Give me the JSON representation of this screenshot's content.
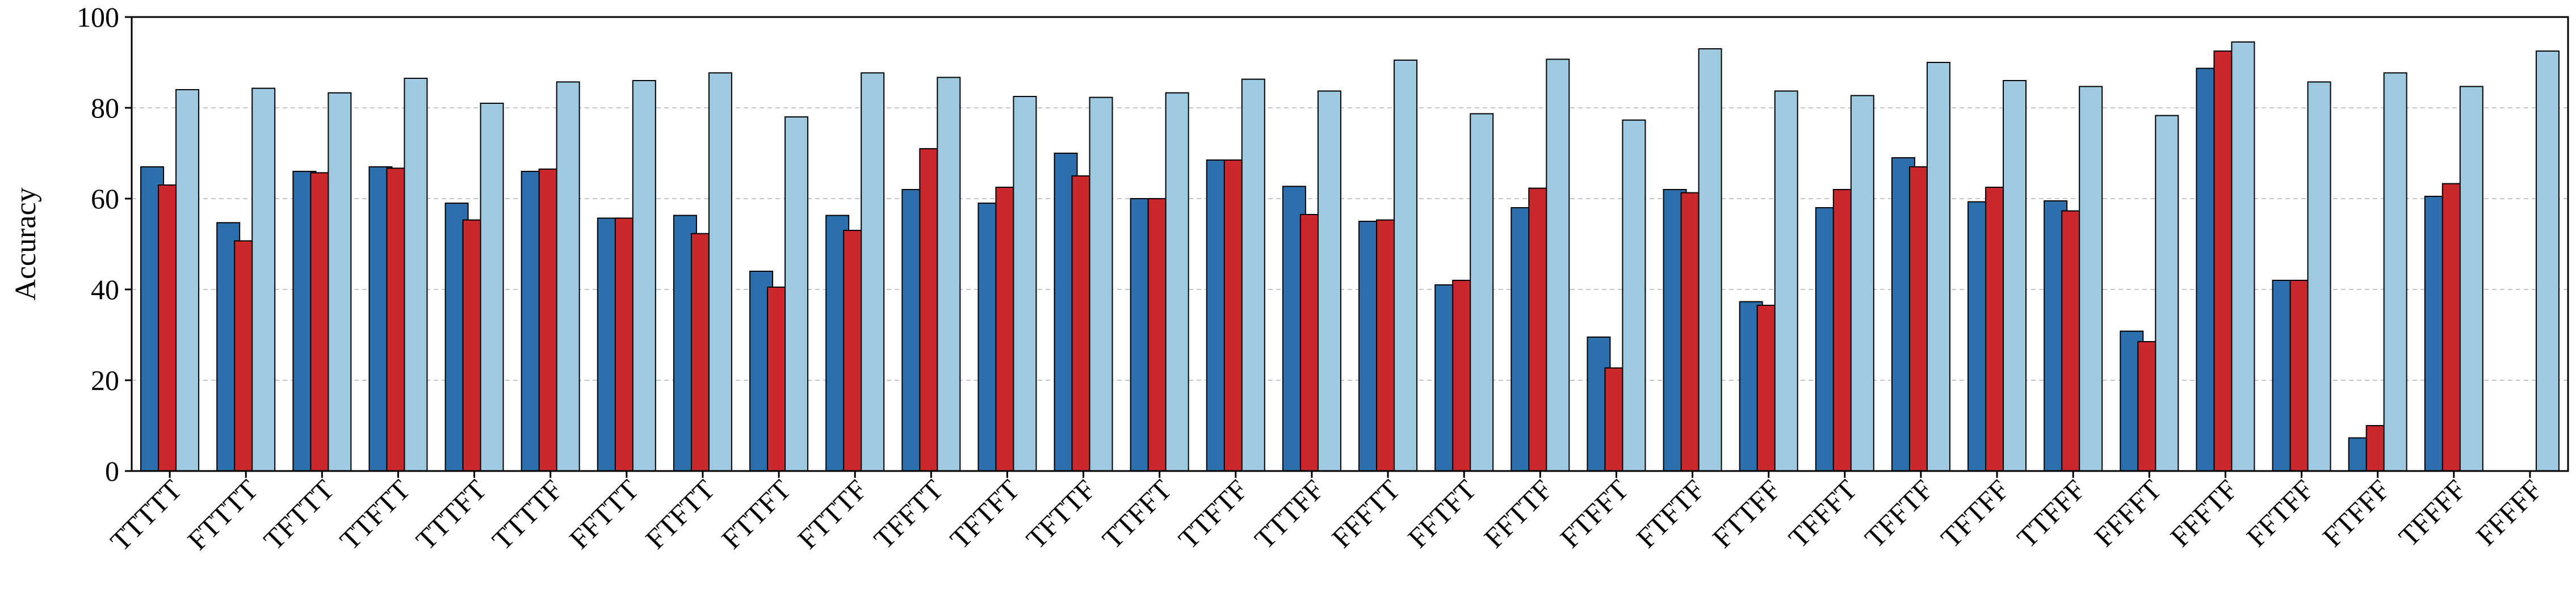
{
  "chart_data": {
    "type": "bar",
    "title": "",
    "xlabel": "",
    "ylabel": "Accuracy",
    "ylim": [
      0,
      100
    ],
    "yticks": [
      0,
      20,
      40,
      60,
      80,
      100
    ],
    "grid": "horizontal dashed",
    "legend": "none",
    "categories": [
      "TTTTT",
      "FTTTT",
      "TFTTT",
      "TTFTT",
      "TTTFT",
      "TTTTF",
      "FFTTT",
      "FTFTT",
      "FTTFT",
      "FTTTF",
      "TFFTT",
      "TFTFT",
      "TFTTF",
      "TTFFT",
      "TTFTF",
      "TTTFF",
      "FFFTT",
      "FFTFT",
      "FFTTF",
      "FTFFT",
      "FTFTF",
      "FTTFF",
      "TFFFT",
      "TFFTF",
      "TFTFF",
      "TTFFF",
      "FFFFT",
      "FFFTF",
      "FFTFF",
      "FTFFF",
      "TFFFF",
      "FFFFF"
    ],
    "series": [
      {
        "color": "#2c6fad",
        "values": [
          67,
          54.7,
          66,
          67,
          59,
          66,
          55.7,
          56.3,
          44,
          56.3,
          62,
          59,
          70,
          60,
          68.5,
          62.7,
          55,
          41,
          58,
          29.5,
          62,
          37.3,
          58,
          69,
          59.3,
          59.5,
          30.8,
          88.7,
          42,
          7.3,
          60.5,
          null
        ]
      },
      {
        "color": "#c9282d",
        "values": [
          63,
          50.7,
          65.7,
          66.7,
          55.3,
          66.5,
          55.7,
          52.3,
          40.5,
          53,
          71,
          62.5,
          65,
          60,
          68.5,
          56.5,
          55.3,
          42,
          62.3,
          22.7,
          61.3,
          36.5,
          62,
          67,
          62.5,
          57.3,
          28.5,
          92.5,
          42,
          10,
          63.3,
          null
        ]
      },
      {
        "color": "#9ecae1",
        "values": [
          84,
          84.3,
          83.3,
          86.5,
          81,
          85.7,
          86,
          87.7,
          78,
          87.7,
          86.7,
          82.5,
          82.3,
          83.3,
          86.3,
          83.7,
          90.5,
          78.7,
          90.7,
          77.3,
          93,
          83.7,
          82.7,
          90,
          86,
          84.7,
          78.3,
          94.5,
          85.7,
          87.7,
          84.7,
          92.5
        ]
      }
    ]
  }
}
